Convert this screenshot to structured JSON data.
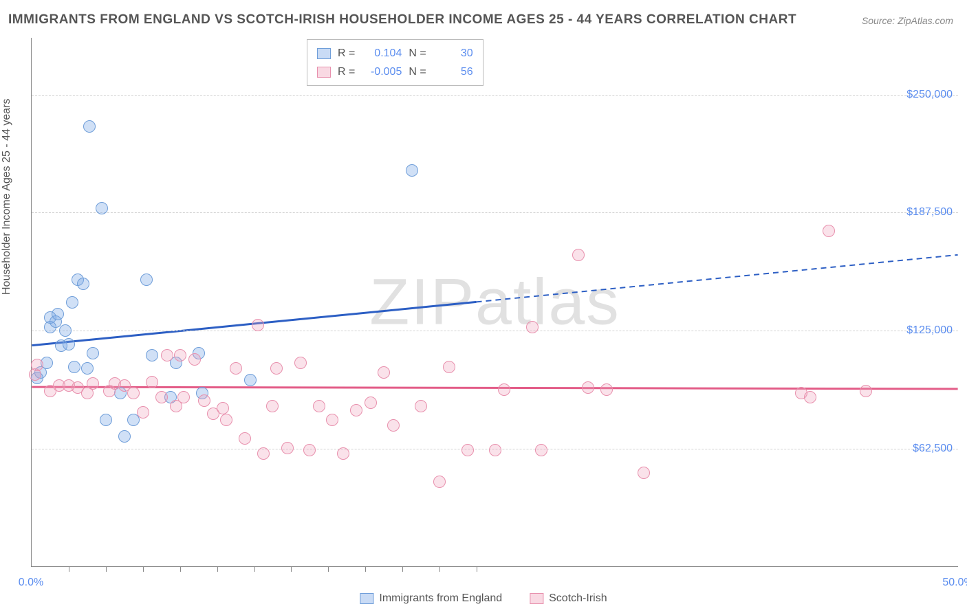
{
  "title": "IMMIGRANTS FROM ENGLAND VS SCOTCH-IRISH HOUSEHOLDER INCOME AGES 25 - 44 YEARS CORRELATION CHART",
  "source": "Source: ZipAtlas.com",
  "watermark": "ZIPatlas",
  "chart": {
    "type": "scatter",
    "y_axis_title": "Householder Income Ages 25 - 44 years",
    "x_axis_title": "",
    "xlim": [
      0,
      50
    ],
    "ylim": [
      0,
      280000
    ],
    "x_ticks_pct": [
      0,
      50
    ],
    "x_tick_labels": [
      "0.0%",
      "50.0%"
    ],
    "x_minor_ticks": [
      2.0,
      4.0,
      6.0,
      8.0,
      10.0,
      12.0,
      14.0,
      16.0,
      18.0,
      20.0,
      22.0,
      24.0
    ],
    "y_ticks": [
      62500,
      125000,
      187500,
      250000
    ],
    "y_tick_labels": [
      "$62,500",
      "$125,000",
      "$187,500",
      "$250,000"
    ],
    "grid_color": "#d0d0d0",
    "background_color": "#ffffff",
    "marker_size": 18,
    "series": [
      {
        "name": "Immigrants from England",
        "label": "Immigrants from England",
        "color_fill": "rgba(120,165,230,0.35)",
        "color_stroke": "#6f9ed9",
        "trend_color": "#2d5fc4",
        "R": "0.104",
        "N": "30",
        "trend": {
          "y_at_x0": 117000,
          "y_at_x50": 165000,
          "dash_after_x": 24
        },
        "points": [
          [
            0.3,
            100000
          ],
          [
            0.5,
            103000
          ],
          [
            0.8,
            108000
          ],
          [
            1.0,
            127000
          ],
          [
            1.0,
            132000
          ],
          [
            1.3,
            130000
          ],
          [
            1.4,
            134000
          ],
          [
            1.6,
            117000
          ],
          [
            1.8,
            125000
          ],
          [
            2.0,
            118000
          ],
          [
            2.2,
            140000
          ],
          [
            2.3,
            106000
          ],
          [
            2.5,
            152000
          ],
          [
            2.8,
            150000
          ],
          [
            3.0,
            105000
          ],
          [
            3.1,
            233000
          ],
          [
            3.3,
            113000
          ],
          [
            3.8,
            190000
          ],
          [
            4.0,
            78000
          ],
          [
            4.8,
            92000
          ],
          [
            5.0,
            69000
          ],
          [
            5.5,
            78000
          ],
          [
            6.2,
            152000
          ],
          [
            6.5,
            112000
          ],
          [
            7.5,
            90000
          ],
          [
            7.8,
            108000
          ],
          [
            9.0,
            113000
          ],
          [
            9.2,
            92000
          ],
          [
            11.8,
            99000
          ],
          [
            20.5,
            210000
          ]
        ]
      },
      {
        "name": "Scotch-Irish",
        "label": "Scotch-Irish",
        "color_fill": "rgba(240,160,185,0.3)",
        "color_stroke": "#e890ad",
        "trend_color": "#e35d88",
        "R": "-0.005",
        "N": "56",
        "trend": {
          "y_at_x0": 95000,
          "y_at_x50": 94000,
          "dash_after_x": 50
        },
        "points": [
          [
            0.2,
            102000
          ],
          [
            0.3,
            107000
          ],
          [
            1.0,
            93000
          ],
          [
            1.5,
            96000
          ],
          [
            2.0,
            96000
          ],
          [
            2.5,
            95000
          ],
          [
            3.0,
            92000
          ],
          [
            3.3,
            97000
          ],
          [
            4.2,
            93000
          ],
          [
            4.5,
            97000
          ],
          [
            5.0,
            96000
          ],
          [
            5.5,
            92000
          ],
          [
            6.0,
            82000
          ],
          [
            6.5,
            98000
          ],
          [
            7.0,
            90000
          ],
          [
            7.3,
            112000
          ],
          [
            7.8,
            85000
          ],
          [
            8.0,
            112000
          ],
          [
            8.2,
            90000
          ],
          [
            8.8,
            110000
          ],
          [
            9.3,
            88000
          ],
          [
            9.8,
            81000
          ],
          [
            10.3,
            84000
          ],
          [
            10.5,
            78000
          ],
          [
            11.0,
            105000
          ],
          [
            11.5,
            68000
          ],
          [
            12.2,
            128000
          ],
          [
            12.5,
            60000
          ],
          [
            13.0,
            85000
          ],
          [
            13.2,
            105000
          ],
          [
            13.8,
            63000
          ],
          [
            14.5,
            108000
          ],
          [
            15.0,
            62000
          ],
          [
            15.5,
            85000
          ],
          [
            16.2,
            78000
          ],
          [
            16.8,
            60000
          ],
          [
            17.5,
            83000
          ],
          [
            18.3,
            87000
          ],
          [
            19.0,
            103000
          ],
          [
            19.5,
            75000
          ],
          [
            21.0,
            85000
          ],
          [
            22.0,
            45000
          ],
          [
            22.5,
            106000
          ],
          [
            23.5,
            62000
          ],
          [
            25.0,
            62000
          ],
          [
            25.5,
            94000
          ],
          [
            27.0,
            127000
          ],
          [
            27.5,
            62000
          ],
          [
            29.5,
            165000
          ],
          [
            30.0,
            95000
          ],
          [
            31.0,
            94000
          ],
          [
            33.0,
            50000
          ],
          [
            41.5,
            92000
          ],
          [
            42.0,
            90000
          ],
          [
            43.0,
            178000
          ],
          [
            45.0,
            93000
          ]
        ]
      }
    ]
  }
}
